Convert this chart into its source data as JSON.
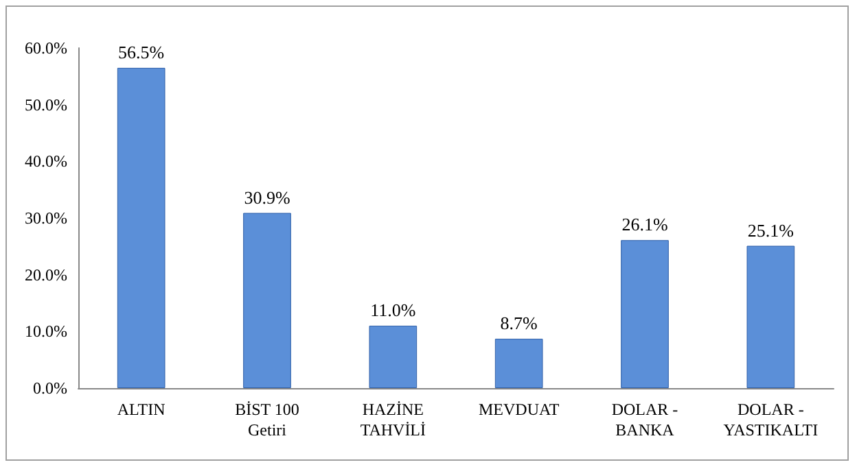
{
  "chart_data": {
    "type": "bar",
    "categories": [
      "ALTIN",
      "BİST 100\nGetiri",
      "HAZİNE\nTAHVİLİ",
      "MEVDUAT",
      "DOLAR -\nBANKA",
      "DOLAR -\nYASTIKALTI"
    ],
    "values": [
      56.5,
      30.9,
      11.0,
      8.7,
      26.1,
      25.1
    ],
    "value_labels": [
      "56.5%",
      "30.9%",
      "11.0%",
      "8.7%",
      "26.1%",
      "25.1%"
    ],
    "color": "#5b8fd8",
    "ylim": [
      0,
      60
    ],
    "yticks": [
      {
        "value": 0,
        "label": "0.0%"
      },
      {
        "value": 10,
        "label": "10.0%"
      },
      {
        "value": 20,
        "label": "20.0%"
      },
      {
        "value": 30,
        "label": "30.0%"
      },
      {
        "value": 40,
        "label": "40.0%"
      },
      {
        "value": 50,
        "label": "50.0%"
      },
      {
        "value": 60,
        "label": "60.0%"
      }
    ],
    "grid": false
  }
}
